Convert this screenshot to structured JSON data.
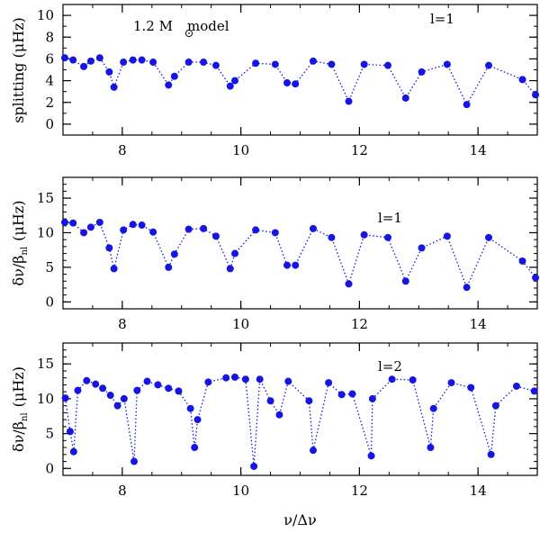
{
  "chart_data": [
    {
      "type": "scatter",
      "line_style": "dotted",
      "color": "#1515e6",
      "annotation": "1.2 M",
      "annotation_suffix": "model",
      "mode_label": "l=1",
      "ylabel": "splitting (μHz)",
      "xlim": [
        7,
        15
      ],
      "ylim": [
        -1,
        11
      ],
      "x_ticks": [
        8,
        10,
        12,
        14
      ],
      "y_ticks": [
        0,
        2,
        4,
        6,
        8,
        10
      ],
      "x": [
        7.03,
        7.17,
        7.35,
        7.47,
        7.62,
        7.78,
        7.86,
        8.02,
        8.18,
        8.33,
        8.52,
        8.78,
        8.88,
        9.12,
        9.37,
        9.58,
        9.82,
        9.9,
        10.25,
        10.58,
        10.78,
        10.92,
        11.22,
        11.53,
        11.82,
        12.08,
        12.48,
        12.78,
        13.05,
        13.48,
        13.81,
        14.18,
        14.75,
        14.97
      ],
      "y": [
        6.1,
        5.9,
        5.3,
        5.8,
        6.1,
        4.8,
        3.4,
        5.7,
        5.9,
        5.9,
        5.7,
        3.6,
        4.4,
        5.7,
        5.7,
        5.4,
        3.5,
        4.0,
        5.6,
        5.5,
        3.8,
        3.7,
        5.8,
        5.5,
        2.1,
        5.5,
        5.4,
        2.4,
        4.8,
        5.5,
        1.8,
        5.4,
        4.1,
        2.7
      ]
    },
    {
      "type": "scatter",
      "line_style": "dotted",
      "color": "#1515e6",
      "mode_label": "l=1",
      "ylabel_main": "δν/β",
      "ylabel_sub": "nl",
      "ylabel_unit": "(μHz)",
      "xlim": [
        7,
        15
      ],
      "ylim": [
        -1,
        18
      ],
      "x_ticks": [
        8,
        10,
        12,
        14
      ],
      "y_ticks": [
        0,
        5,
        10,
        15
      ],
      "x": [
        7.03,
        7.17,
        7.35,
        7.47,
        7.62,
        7.78,
        7.86,
        8.02,
        8.18,
        8.33,
        8.52,
        8.78,
        8.88,
        9.12,
        9.37,
        9.58,
        9.82,
        9.9,
        10.25,
        10.58,
        10.78,
        10.92,
        11.22,
        11.53,
        11.82,
        12.08,
        12.48,
        12.78,
        13.05,
        13.48,
        13.81,
        14.18,
        14.75,
        14.97
      ],
      "y": [
        11.5,
        11.4,
        10.0,
        10.8,
        11.5,
        7.8,
        4.8,
        10.4,
        11.2,
        11.1,
        10.1,
        5.0,
        6.9,
        10.5,
        10.6,
        9.5,
        4.8,
        7.0,
        10.4,
        10.0,
        5.3,
        5.3,
        10.6,
        9.3,
        2.6,
        9.7,
        9.3,
        3.0,
        7.8,
        9.5,
        2.1,
        9.3,
        5.9,
        3.5
      ]
    },
    {
      "type": "scatter",
      "line_style": "dotted",
      "color": "#1515e6",
      "mode_label": "l=2",
      "xlabel": "ν/Δν",
      "ylabel_main": "δν/β",
      "ylabel_sub": "nl",
      "ylabel_unit": "(μHz)",
      "xlim": [
        7,
        15
      ],
      "ylim": [
        -1,
        18
      ],
      "x_ticks": [
        8,
        10,
        12,
        14
      ],
      "y_ticks": [
        0,
        5,
        10,
        15
      ],
      "x": [
        7.04,
        7.12,
        7.18,
        7.25,
        7.4,
        7.55,
        7.67,
        7.8,
        7.92,
        8.03,
        8.2,
        8.25,
        8.42,
        8.6,
        8.78,
        8.95,
        9.15,
        9.22,
        9.27,
        9.45,
        9.75,
        9.9,
        10.08,
        10.22,
        10.32,
        10.5,
        10.65,
        10.8,
        11.15,
        11.22,
        11.48,
        11.7,
        11.88,
        12.2,
        12.22,
        12.55,
        12.9,
        13.2,
        13.25,
        13.55,
        13.88,
        14.22,
        14.3,
        14.65,
        14.95
      ],
      "y": [
        10.1,
        5.3,
        2.4,
        11.2,
        12.6,
        12.1,
        11.5,
        10.5,
        9.0,
        10.0,
        1.0,
        11.2,
        12.5,
        12.0,
        11.5,
        11.1,
        8.6,
        3.0,
        7.0,
        12.4,
        13.0,
        13.1,
        12.8,
        0.3,
        12.8,
        9.7,
        7.7,
        12.5,
        9.7,
        2.6,
        12.3,
        10.6,
        10.7,
        1.8,
        10.0,
        12.8,
        12.7,
        3.0,
        8.6,
        12.3,
        11.6,
        2.0,
        9.0,
        11.8,
        11.1
      ]
    }
  ]
}
